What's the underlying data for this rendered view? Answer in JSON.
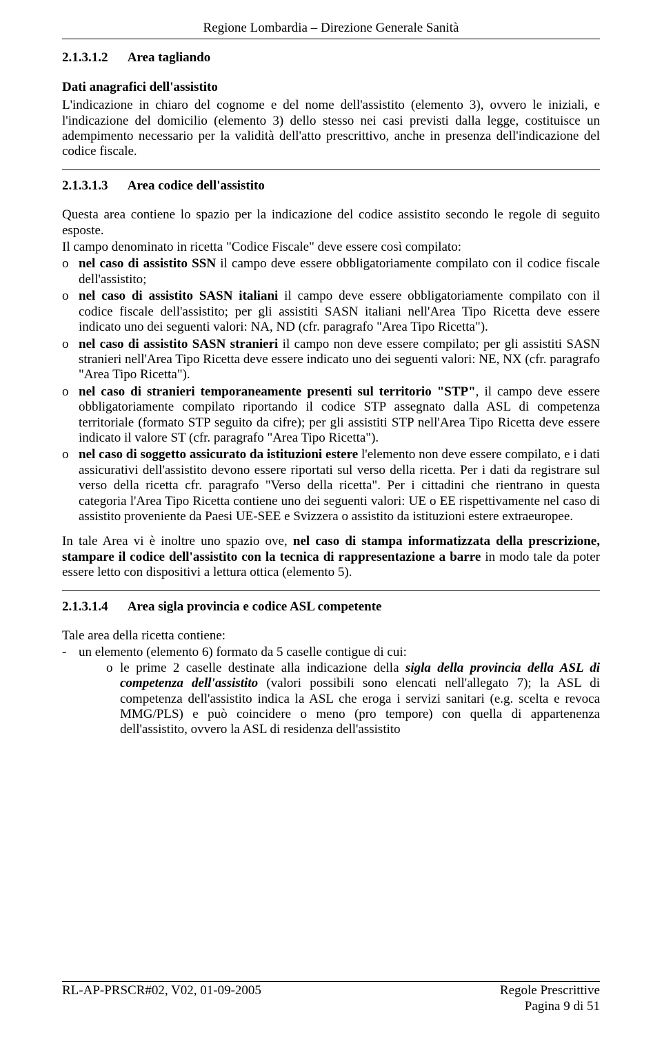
{
  "header": {
    "title": "Regione Lombardia – Direzione Generale Sanità"
  },
  "section_3_1_2": {
    "num": "2.1.3.1.2",
    "title": "Area tagliando",
    "sub_head": "Dati anagrafici dell'assistito",
    "para": "L'indicazione in chiaro del cognome e del nome dell'assistito (elemento 3), ovvero le iniziali, e l'indicazione del domicilio (elemento 3) dello stesso nei casi previsti dalla legge, costituisce un adempimento necessario per la validità dell'atto prescrittivo, anche in presenza dell'indicazione del codice fiscale."
  },
  "section_3_1_3": {
    "num": "2.1.3.1.3",
    "title": "Area codice dell'assistito",
    "para1": "Questa area contiene lo spazio per la indicazione del codice assistito secondo le regole di seguito esposte.",
    "para2": "Il campo denominato in ricetta \"Codice Fiscale\" deve essere così compilato:",
    "items": {
      "i1_a": "nel caso di assistito SSN",
      "i1_b": " il campo deve essere obbligatoriamente compilato con il codice fiscale dell'assistito;",
      "i2_a": "nel caso di assistito SASN italiani",
      "i2_b": " il campo deve essere obbligatoriamente compilato con il codice fiscale dell'assistito; per gli assistiti SASN italiani nell'Area Tipo Ricetta deve essere indicato uno dei seguenti valori: NA, ND (cfr. paragrafo \"Area Tipo Ricetta\").",
      "i3_a": "nel caso di assistito SASN stranieri",
      "i3_b": " il campo non deve essere compilato; per gli assistiti SASN stranieri nell'Area Tipo Ricetta deve essere indicato uno dei seguenti valori: NE, NX (cfr. paragrafo \"Area Tipo Ricetta\").",
      "i4_a": "nel caso di stranieri temporaneamente presenti sul territorio \"STP\"",
      "i4_b": ",  il campo deve essere obbligatoriamente compilato riportando il codice STP assegnato dalla ASL di competenza territoriale (formato STP seguito da cifre); per gli assistiti STP nell'Area Tipo Ricetta deve essere indicato il valore ST  (cfr. paragrafo \"Area Tipo Ricetta\").",
      "i5_a": "nel caso di soggetto assicurato da istituzioni estere",
      "i5_b": " l'elemento non deve essere compilato, e i dati assicurativi dell'assistito devono essere riportati sul verso della ricetta. Per i dati da registrare sul verso della ricetta cfr. paragrafo \"Verso della ricetta\". Per i cittadini che rientrano in questa categoria l'Area Tipo Ricetta contiene uno dei seguenti valori: UE o EE rispettivamente nel caso di assistito proveniente da Paesi UE-SEE e Svizzera o assistito da istituzioni estere extraeuropee."
    },
    "para3_a": "In tale Area vi è inoltre uno spazio ove, ",
    "para3_b": "nel caso di stampa informatizzata della prescrizione, stampare il codice dell'assistito con la tecnica di rappresentazione a barre",
    "para3_c": " in modo tale da poter essere letto con dispositivi a lettura ottica (elemento 5)."
  },
  "section_3_1_4": {
    "num": "2.1.3.1.4",
    "title": "Area sigla provincia e codice ASL competente",
    "para1": "Tale area della ricetta contiene:",
    "dash1": "un elemento (elemento 6) formato da 5 caselle contigue di cui:",
    "sub1_a": "le prime 2 caselle destinate alla indicazione della ",
    "sub1_b": "sigla della provincia della ASL di competenza dell'assistito",
    "sub1_c": " (valori possibili sono elencati nell'allegato 7); la ASL di competenza dell'assistito indica la ASL che eroga i servizi sanitari  (e.g. scelta e revoca MMG/PLS) e può coincidere o meno (pro tempore) con quella di appartenenza dell'assistito, ovvero la ASL di residenza dell'assistito"
  },
  "footer": {
    "left": "RL-AP-PRSCR#02, V02, 01-09-2005",
    "right1": "Regole Prescrittive",
    "right2": "Pagina 9 di 51"
  }
}
